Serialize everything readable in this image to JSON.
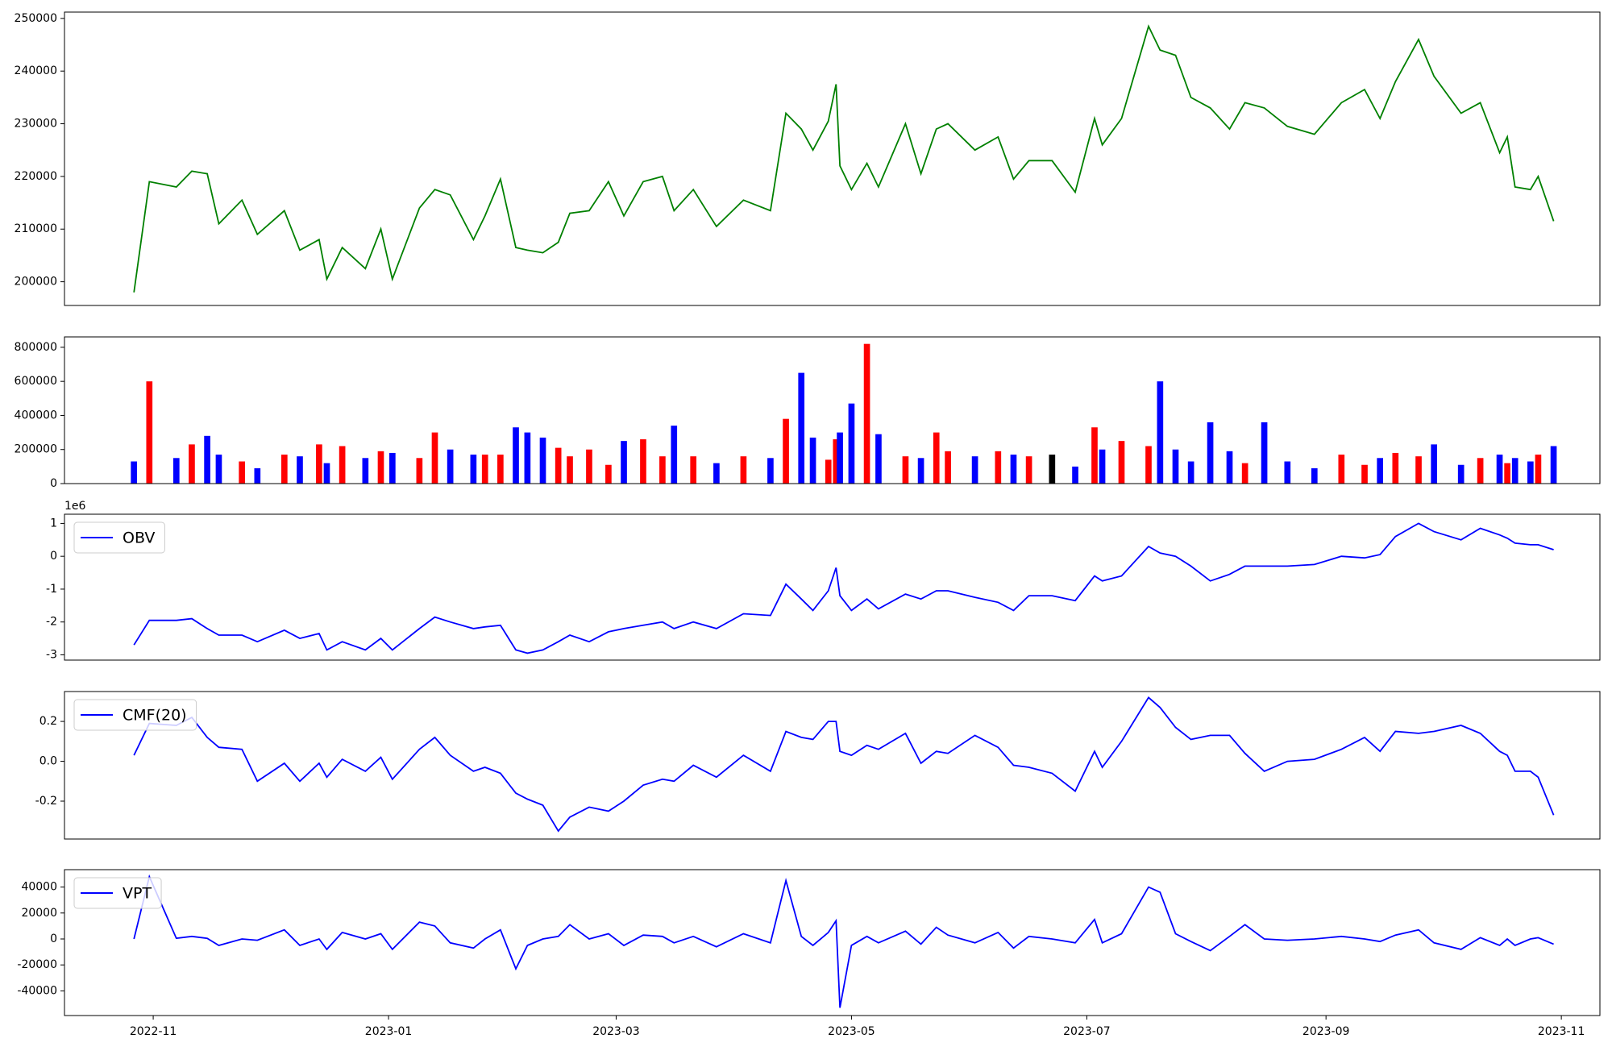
{
  "chart_data": {
    "x": [
      "2022-10-27",
      "2022-10-31",
      "2022-11-07",
      "2022-11-11",
      "2022-11-15",
      "2022-11-18",
      "2022-11-24",
      "2022-11-28",
      "2022-12-05",
      "2022-12-09",
      "2022-12-14",
      "2022-12-16",
      "2022-12-20",
      "2022-12-26",
      "2022-12-30",
      "2023-01-02",
      "2023-01-09",
      "2023-01-13",
      "2023-01-17",
      "2023-01-23",
      "2023-01-26",
      "2023-01-30",
      "2023-02-03",
      "2023-02-06",
      "2023-02-10",
      "2023-02-14",
      "2023-02-17",
      "2023-02-22",
      "2023-02-27",
      "2023-03-03",
      "2023-03-08",
      "2023-03-13",
      "2023-03-16",
      "2023-03-21",
      "2023-03-27",
      "2023-04-03",
      "2023-04-10",
      "2023-04-14",
      "2023-04-18",
      "2023-04-21",
      "2023-04-25",
      "2023-04-27",
      "2023-04-28",
      "2023-05-01",
      "2023-05-05",
      "2023-05-08",
      "2023-05-15",
      "2023-05-19",
      "2023-05-23",
      "2023-05-26",
      "2023-06-02",
      "2023-06-08",
      "2023-06-12",
      "2023-06-16",
      "2023-06-22",
      "2023-06-28",
      "2023-07-03",
      "2023-07-05",
      "2023-07-10",
      "2023-07-17",
      "2023-07-20",
      "2023-07-24",
      "2023-07-28",
      "2023-08-02",
      "2023-08-07",
      "2023-08-11",
      "2023-08-16",
      "2023-08-22",
      "2023-08-29",
      "2023-09-05",
      "2023-09-11",
      "2023-09-15",
      "2023-09-19",
      "2023-09-25",
      "2023-09-29",
      "2023-10-06",
      "2023-10-11",
      "2023-10-16",
      "2023-10-18",
      "2023-10-20",
      "2023-10-24",
      "2023-10-26",
      "2023-10-30"
    ],
    "xlim": [
      "2022-10-09",
      "2023-11-11"
    ],
    "xticks": [
      {
        "value": "2022-11-01",
        "label": "2022-11"
      },
      {
        "value": "2023-01-01",
        "label": "2023-01"
      },
      {
        "value": "2023-03-01",
        "label": "2023-03"
      },
      {
        "value": "2023-05-01",
        "label": "2023-05"
      },
      {
        "value": "2023-07-01",
        "label": "2023-07"
      },
      {
        "value": "2023-09-01",
        "label": "2023-09"
      },
      {
        "value": "2023-11-01",
        "label": "2023-11"
      }
    ],
    "panels": [
      {
        "type": "line",
        "color": "#008000",
        "values": [
          198000,
          219000,
          218000,
          221000,
          220500,
          211000,
          215500,
          209000,
          213500,
          206000,
          208000,
          200500,
          206500,
          202500,
          210000,
          200500,
          214000,
          217500,
          216500,
          208000,
          212500,
          219500,
          206500,
          206000,
          205500,
          207500,
          213000,
          213500,
          219000,
          212500,
          219000,
          220000,
          213500,
          217500,
          210500,
          215500,
          213500,
          232000,
          229000,
          225000,
          230500,
          237500,
          222000,
          217500,
          222500,
          218000,
          230000,
          220500,
          229000,
          230000,
          225000,
          227500,
          219500,
          223000,
          223000,
          217000,
          231000,
          226000,
          231000,
          248500,
          244000,
          243000,
          235000,
          233000,
          229000,
          234000,
          233000,
          229500,
          228000,
          234000,
          236500,
          231000,
          238000,
          246000,
          239000,
          232000,
          234000,
          224500,
          227500,
          218000,
          217500,
          220000,
          211500
        ],
        "ylim": [
          195500,
          251200
        ],
        "yticks": [
          200000,
          210000,
          220000,
          230000,
          240000,
          250000
        ]
      },
      {
        "type": "bar",
        "up_color": "#ff0000",
        "down_color": "#0000ff",
        "flat_color": "#000000",
        "values": [
          130000,
          600000,
          150000,
          230000,
          280000,
          170000,
          130000,
          90000,
          170000,
          160000,
          230000,
          120000,
          220000,
          150000,
          190000,
          180000,
          150000,
          300000,
          200000,
          170000,
          170000,
          170000,
          330000,
          300000,
          270000,
          210000,
          160000,
          200000,
          110000,
          250000,
          260000,
          160000,
          340000,
          160000,
          120000,
          160000,
          150000,
          380000,
          650000,
          270000,
          140000,
          260000,
          300000,
          470000,
          820000,
          290000,
          160000,
          150000,
          300000,
          190000,
          160000,
          190000,
          170000,
          160000,
          170000,
          100000,
          330000,
          200000,
          250000,
          220000,
          600000,
          200000,
          130000,
          360000,
          190000,
          120000,
          360000,
          130000,
          90000,
          170000,
          110000,
          150000,
          180000,
          160000,
          230000,
          110000,
          150000,
          170000,
          120000,
          150000,
          130000,
          170000,
          220000
        ],
        "ylim": [
          0,
          861000
        ],
        "yticks": [
          0,
          200000,
          400000,
          600000,
          800000
        ]
      },
      {
        "type": "line",
        "name": "OBV",
        "color": "#0000ff",
        "legend": "upper left",
        "offset_label": "1e6",
        "values": [
          -2.7,
          -1.95,
          -1.95,
          -1.9,
          -2.2,
          -2.4,
          -2.4,
          -2.6,
          -2.25,
          -2.5,
          -2.35,
          -2.85,
          -2.6,
          -2.85,
          -2.5,
          -2.85,
          -2.2,
          -1.85,
          -2.0,
          -2.2,
          -2.15,
          -2.1,
          -2.85,
          -2.95,
          -2.85,
          -2.6,
          -2.4,
          -2.6,
          -2.3,
          -2.2,
          -2.1,
          -2.0,
          -2.2,
          -2.0,
          -2.2,
          -1.75,
          -1.8,
          -0.85,
          -1.3,
          -1.65,
          -1.05,
          -0.35,
          -1.2,
          -1.65,
          -1.3,
          -1.6,
          -1.15,
          -1.3,
          -1.05,
          -1.05,
          -1.25,
          -1.4,
          -1.65,
          -1.2,
          -1.2,
          -1.35,
          -0.6,
          -0.75,
          -0.6,
          0.3,
          0.1,
          0.0,
          -0.3,
          -0.75,
          -0.55,
          -0.3,
          -0.3,
          -0.3,
          -0.25,
          0.0,
          -0.05,
          0.05,
          0.6,
          1.0,
          0.75,
          0.5,
          0.85,
          0.65,
          0.55,
          0.4,
          0.35,
          0.35,
          0.2
        ],
        "ylim": [
          -3.16,
          1.28
        ],
        "yticks": [
          -3,
          -2,
          -1,
          0,
          1
        ]
      },
      {
        "type": "line",
        "name": "CMF(20)",
        "color": "#0000ff",
        "legend": "upper left",
        "values": [
          0.03,
          0.19,
          0.18,
          0.22,
          0.12,
          0.07,
          0.06,
          -0.1,
          -0.01,
          -0.1,
          -0.01,
          -0.08,
          0.01,
          -0.05,
          0.02,
          -0.09,
          0.06,
          0.12,
          0.03,
          -0.05,
          -0.03,
          -0.06,
          -0.16,
          -0.19,
          -0.22,
          -0.35,
          -0.28,
          -0.23,
          -0.25,
          -0.2,
          -0.12,
          -0.09,
          -0.1,
          -0.02,
          -0.08,
          0.03,
          -0.05,
          0.15,
          0.12,
          0.11,
          0.2,
          0.2,
          0.05,
          0.03,
          0.08,
          0.06,
          0.14,
          -0.01,
          0.05,
          0.04,
          0.13,
          0.07,
          -0.02,
          -0.03,
          -0.06,
          -0.15,
          0.05,
          -0.03,
          0.1,
          0.32,
          0.27,
          0.17,
          0.11,
          0.13,
          0.13,
          0.04,
          -0.05,
          0.0,
          0.01,
          0.06,
          0.12,
          0.05,
          0.15,
          0.14,
          0.15,
          0.18,
          0.14,
          0.05,
          0.03,
          -0.05,
          -0.05,
          -0.08,
          -0.27
        ],
        "ylim": [
          -0.39,
          0.35
        ],
        "yticks": [
          -0.2,
          {
            "value": 0,
            "label": "0.0"
          },
          0.2
        ]
      },
      {
        "type": "line",
        "name": "VPT",
        "color": "#0000ff",
        "legend": "upper left",
        "values": [
          0,
          48000,
          500,
          2000,
          500,
          -5000,
          0,
          -1000,
          7000,
          -5000,
          0,
          -8000,
          5000,
          0,
          4000,
          -8000,
          13000,
          10000,
          -3000,
          -7000,
          0,
          7000,
          -23000,
          -5000,
          0,
          2000,
          11000,
          0,
          4000,
          -5000,
          3000,
          2000,
          -3000,
          2000,
          -6000,
          4000,
          -3000,
          45000,
          2000,
          -5000,
          5000,
          14000,
          -53000,
          -5000,
          2000,
          -3000,
          6000,
          -4000,
          9000,
          3000,
          -3000,
          5000,
          -7000,
          2000,
          0,
          -3000,
          15000,
          -3000,
          4000,
          40000,
          36000,
          4000,
          -2000,
          -9000,
          2000,
          11000,
          0,
          -1000,
          0,
          2000,
          0,
          -2000,
          3000,
          7000,
          -3000,
          -8000,
          1000,
          -5000,
          0,
          -5000,
          0,
          1000,
          -4000
        ],
        "ylim": [
          -59000,
          53400
        ],
        "yticks": [
          -40000,
          -20000,
          0,
          20000,
          40000
        ]
      }
    ]
  }
}
